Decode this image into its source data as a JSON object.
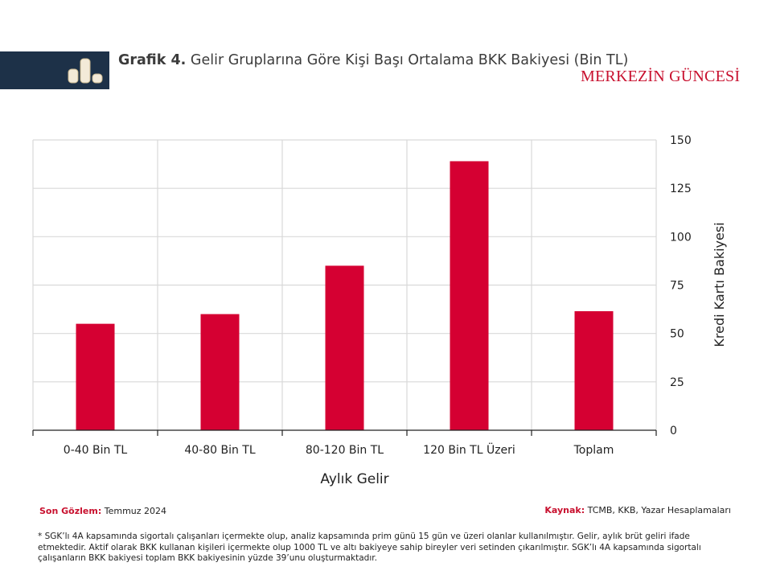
{
  "header": {
    "title_bold": "Grafik 4.",
    "title_rest": "Gelir Gruplarına Göre Kişi Başı Ortalama BKK Bakiyesi (Bin TL)",
    "brand": "MERKEZİN GÜNCESİ",
    "icon": "bar-chart-icon"
  },
  "colors": {
    "bar": "#d50032",
    "band": "#1d3148",
    "brand": "#c8102e",
    "grid": "#d9d9d9"
  },
  "chart_data": {
    "type": "bar",
    "title": "Gelir Gruplarına Göre Kişi Başı Ortalama BKK Bakiyesi (Bin TL)",
    "categories": [
      "0-40 Bin TL",
      "40-80 Bin TL",
      "80-120 Bin TL",
      "120 Bin TL Üzeri",
      "Toplam"
    ],
    "values": [
      55,
      60,
      85,
      139,
      61.5
    ],
    "xlabel": "Aylık Gelir",
    "ylabel": "Kredi Kartı Bakiyesi",
    "ylim": [
      0,
      150
    ],
    "yticks": [
      0,
      25,
      50,
      75,
      100,
      125,
      150
    ],
    "y_axis_side": "right",
    "grid": true,
    "legend": "none"
  },
  "footer": {
    "observation_label": "Son Gözlem:",
    "observation_value": "Temmuz 2024",
    "source_label": "Kaynak:",
    "source_value": "TCMB, KKB, Yazar Hesaplamaları",
    "note": "* SGK’lı 4A kapsamında sigortalı çalışanları içermekte olup, analiz kapsamında prim günü 15 gün ve üzeri olanlar kullanılmıştır. Gelir, aylık brüt geliri ifade etmektedir. Aktif olarak BKK kullanan kişileri içermekte olup 1000 TL ve altı bakiyeye sahip bireyler veri setinden çıkarılmıştır. SGK’lı 4A kapsamında sigortalı çalışanların BKK bakiyesi toplam BKK bakiyesinin yüzde 39’unu oluşturmaktadır."
  }
}
